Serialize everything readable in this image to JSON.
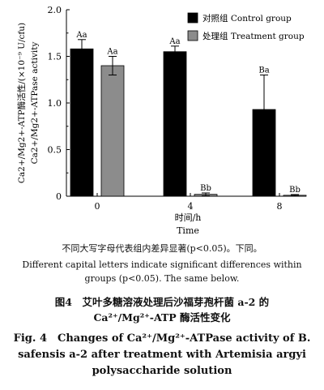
{
  "chart_data": {
    "type": "bar",
    "categories": [
      "0",
      "4",
      "8"
    ],
    "series": [
      {
        "name": "对照组 Control group",
        "color": "#000000",
        "values": [
          1.58,
          1.55,
          0.93
        ],
        "errors": [
          0.1,
          0.06,
          0.37
        ],
        "labels": [
          "Aa",
          "Aa",
          "Ba"
        ]
      },
      {
        "name": "处理组 Treatment group",
        "color": "#8c8c8c",
        "values": [
          1.4,
          0.02,
          0.01
        ],
        "errors": [
          0.1,
          0.015,
          0.008
        ],
        "labels": [
          "Aa",
          "Bb",
          "Bb"
        ]
      }
    ],
    "ylim": [
      0,
      2.0
    ],
    "yticks": [
      "0",
      "0.5",
      "1.0",
      "1.5",
      "2.0"
    ],
    "ylabel_cn": "Ca2+/Mg2+-ATP酶活性/(×10⁻⁹ U/cfu)",
    "ylabel_en": "Ca2+/Mg2+-ATPase activity",
    "xlabel_cn": "时间/h",
    "xlabel_en": "Time",
    "grid": false,
    "legend_position": "top-right"
  },
  "caption": {
    "note_cn": "不同大写字母代表组内差异显著(p<0.05)。下同。",
    "note_en": "Different capital letters indicate significant differences within groups (p<0.05). The same below.",
    "title_cn": "图4　艾叶多糖溶液处理后沙福芽孢杆菌 a-2 的 Ca²⁺/Mg²⁺-ATP 酶活性变化",
    "title_en": "Fig. 4　Changes of Ca²⁺/Mg²⁺-ATPase activity of B. safensis a-2 after treatment with Artemisia argyi polysaccharide solution"
  }
}
